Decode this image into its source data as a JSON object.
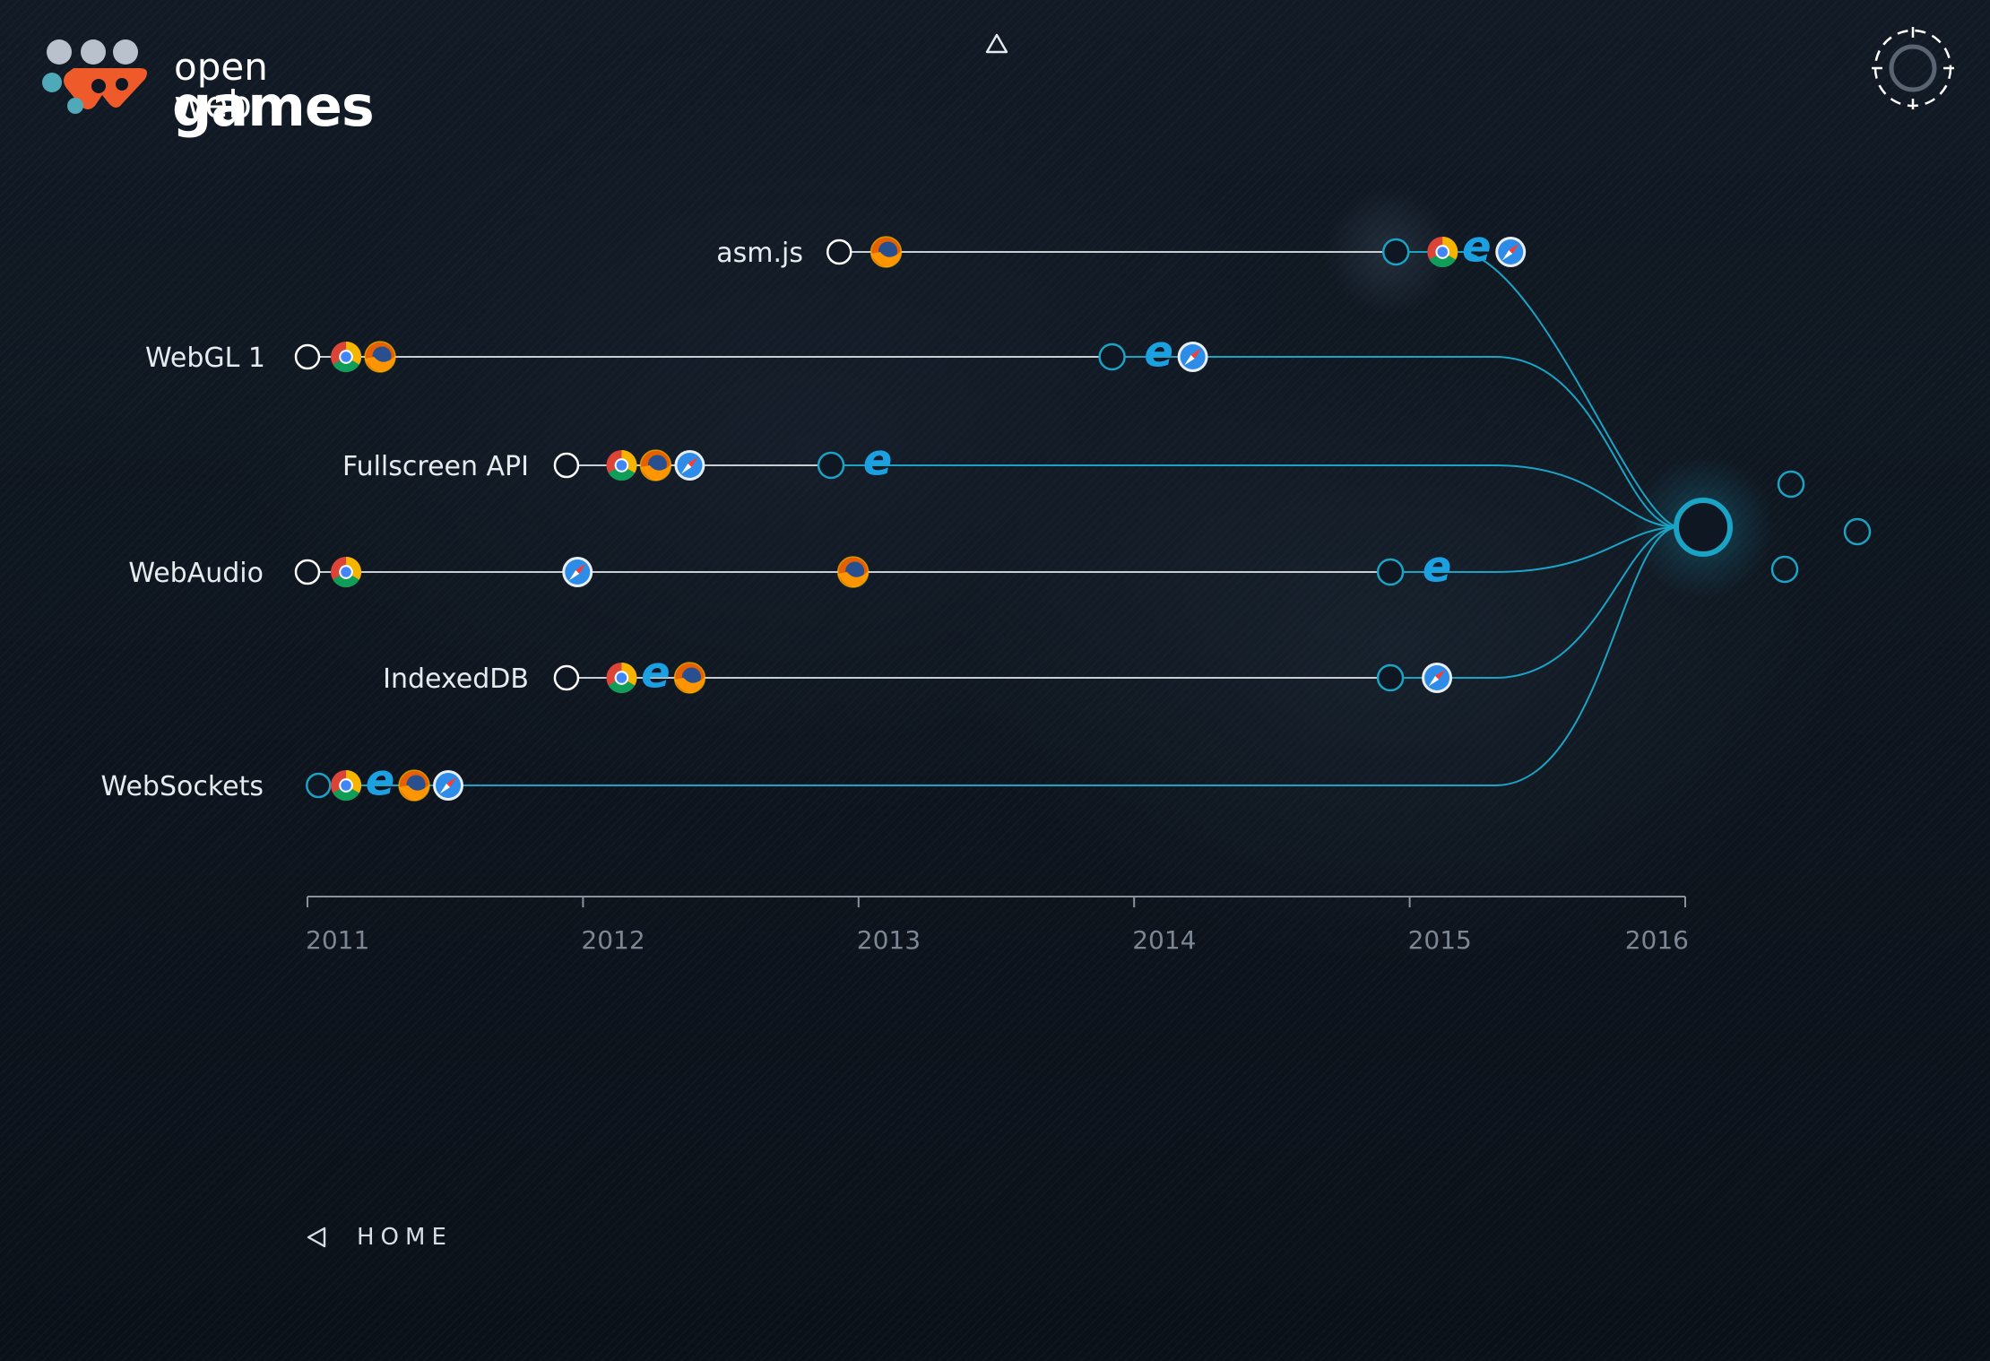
{
  "brand": {
    "line1": "open web",
    "line2": "games",
    "dot_colors": [
      "#b9c2cc",
      "#ee5a2a",
      "#4fa9b8"
    ]
  },
  "nav": {
    "home_label": "HOME"
  },
  "colors": {
    "accent": "#1aa3c4",
    "line_gray": "#c9ced4",
    "axis": "#8a929c"
  },
  "browsers": {
    "chrome": "chrome-icon",
    "firefox": "firefox-icon",
    "ie": "ie-icon",
    "safari": "safari-icon"
  },
  "chart_data": {
    "type": "timeline",
    "x_range": [
      2011,
      2016
    ],
    "ticks": [
      "2011",
      "2012",
      "2013",
      "2014",
      "2015",
      "2016"
    ],
    "features": [
      {
        "name": "asm.js",
        "start": 2012.93,
        "events": [
          {
            "x": 2013.1,
            "browsers": [
              "firefox"
            ]
          },
          {
            "x": 2014.95,
            "browsers": [
              "chrome",
              "ie",
              "safari"
            ],
            "marker": true
          }
        ]
      },
      {
        "name": "WebGL 1",
        "start": 2011.0,
        "events": [
          {
            "x": 2011.14,
            "browsers": [
              "chrome",
              "firefox"
            ]
          },
          {
            "x": 2013.92,
            "browsers": [
              "ie",
              "safari"
            ],
            "marker": true
          }
        ]
      },
      {
        "name": "Fullscreen API",
        "start": 2011.94,
        "events": [
          {
            "x": 2012.14,
            "browsers": [
              "chrome",
              "firefox",
              "safari"
            ]
          },
          {
            "x": 2012.9,
            "browsers": [
              "ie"
            ],
            "marker": true
          }
        ]
      },
      {
        "name": "WebAudio",
        "start": 2011.0,
        "events": [
          {
            "x": 2011.14,
            "browsers": [
              "chrome"
            ]
          },
          {
            "x": 2011.98,
            "browsers": [
              "safari"
            ]
          },
          {
            "x": 2012.98,
            "browsers": [
              "firefox"
            ]
          },
          {
            "x": 2014.93,
            "browsers": [
              "ie"
            ],
            "marker": true
          }
        ]
      },
      {
        "name": "IndexedDB",
        "start": 2011.94,
        "events": [
          {
            "x": 2012.14,
            "browsers": [
              "chrome",
              "ie",
              "firefox"
            ]
          },
          {
            "x": 2014.93,
            "browsers": [
              "safari"
            ],
            "marker": true
          }
        ]
      },
      {
        "name": "WebSockets",
        "start": 2011.04,
        "events": [
          {
            "x": 2011.14,
            "browsers": [
              "chrome",
              "ie",
              "firefox",
              "safari"
            ]
          }
        ]
      }
    ]
  }
}
